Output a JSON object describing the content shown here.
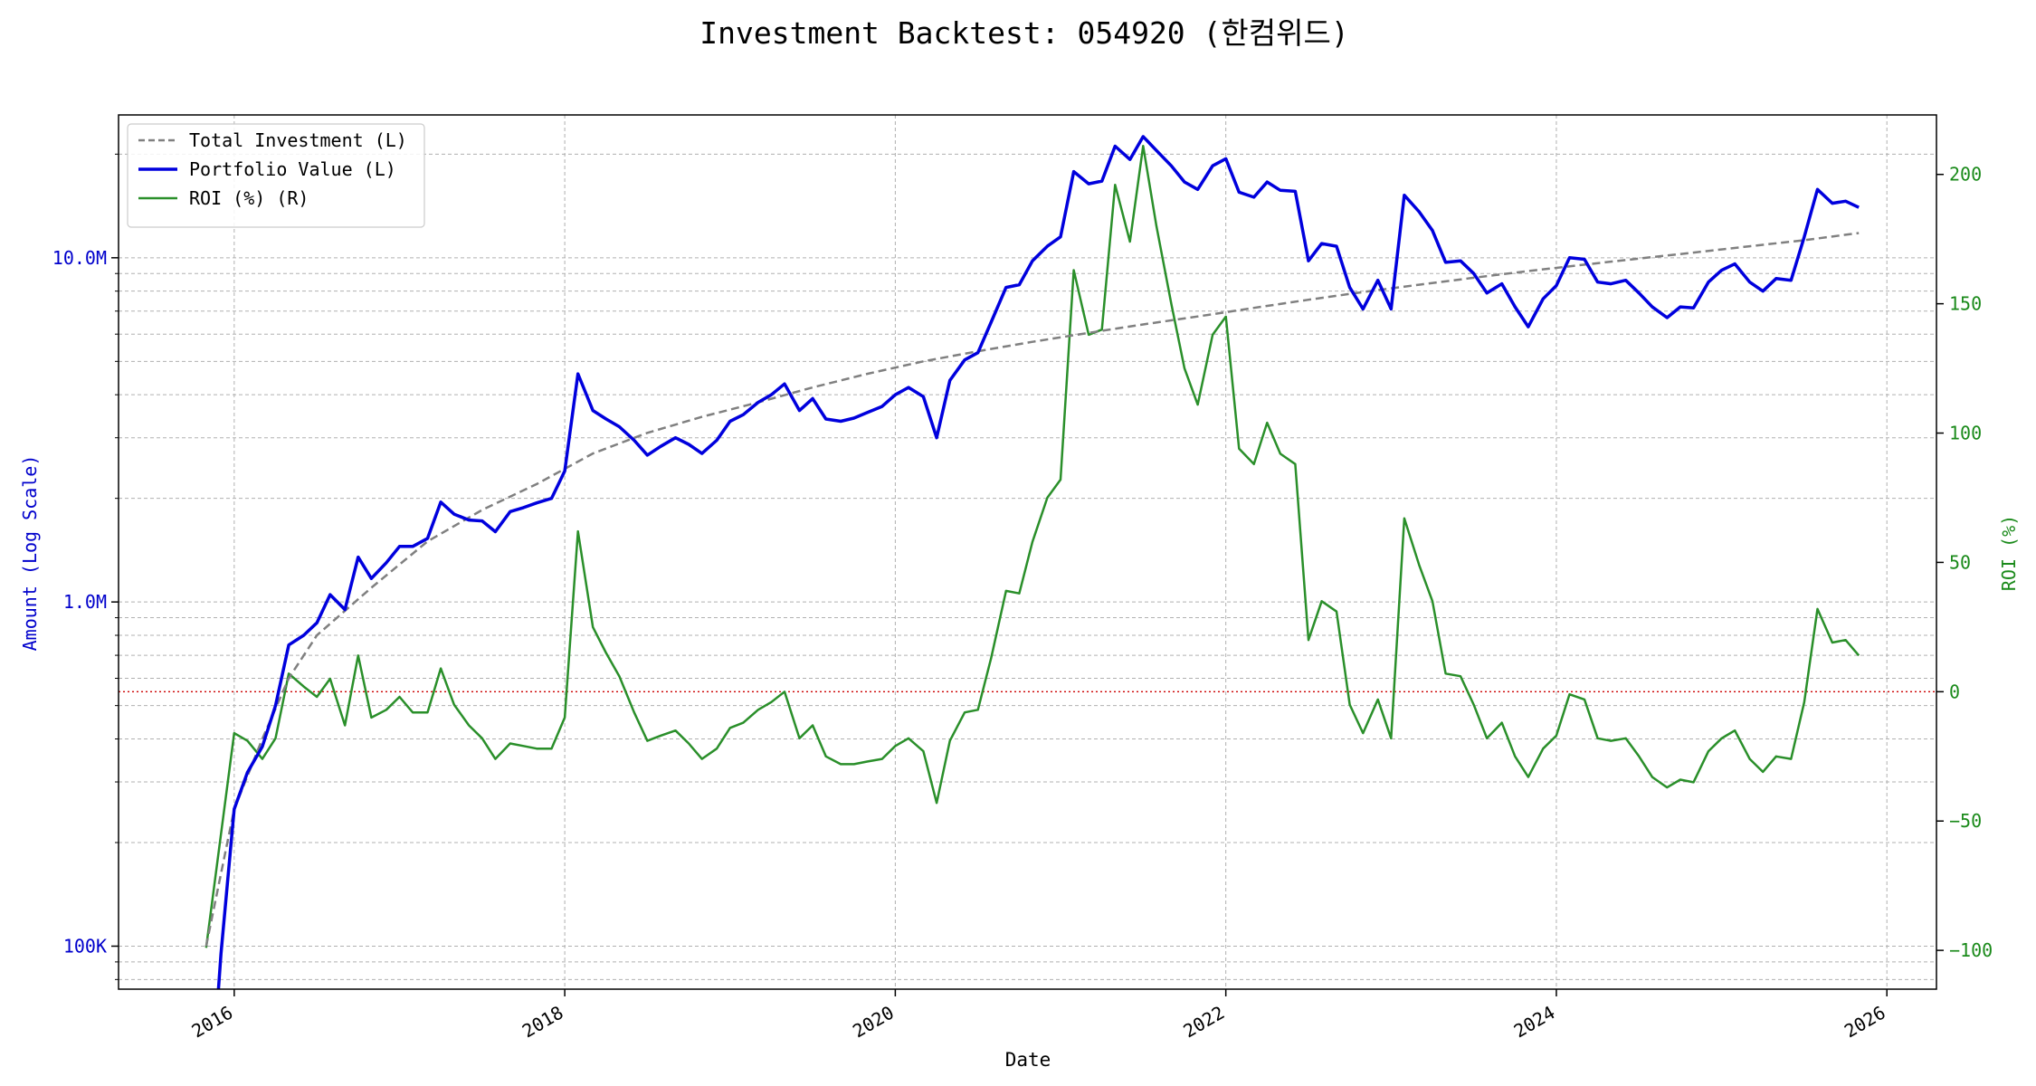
{
  "chart_data": {
    "type": "line",
    "title": "Investment Backtest: 054920 (한컴위드)",
    "xlabel": "Date",
    "ylabel_left": "Amount (Log Scale)",
    "ylabel_right": "ROI (%)",
    "y_left_scale": "log",
    "y_left_range": [
      75000,
      26000000
    ],
    "y_right_range": [
      -115,
      223
    ],
    "x_range": [
      2015.3,
      2026.3
    ],
    "x_ticks": [
      {
        "value": 2016,
        "label": "2016"
      },
      {
        "value": 2018,
        "label": "2018"
      },
      {
        "value": 2020,
        "label": "2020"
      },
      {
        "value": 2022,
        "label": "2022"
      },
      {
        "value": 2024,
        "label": "2024"
      },
      {
        "value": 2026,
        "label": "2026"
      }
    ],
    "y_left_ticks": [
      {
        "value": 100000,
        "label": "100K"
      },
      {
        "value": 1000000,
        "label": "1.0M"
      },
      {
        "value": 10000000,
        "label": "10.0M"
      }
    ],
    "y_right_ticks": [
      {
        "value": -100,
        "label": "−100"
      },
      {
        "value": -50,
        "label": "−50"
      },
      {
        "value": 0,
        "label": "0"
      },
      {
        "value": 50,
        "label": "50"
      },
      {
        "value": 100,
        "label": "100"
      },
      {
        "value": 150,
        "label": "150"
      },
      {
        "value": 200,
        "label": "200"
      }
    ],
    "grid": true,
    "reference_line": {
      "axis": "right",
      "value": 0,
      "color": "#cc0000",
      "style": "dotted"
    },
    "legend": {
      "position": "top-left",
      "entries": [
        {
          "label": "Total Investment (L)",
          "color": "#808080",
          "style": "dashed"
        },
        {
          "label": "Portfolio Value (L)",
          "color": "#0000dd",
          "style": "solid"
        },
        {
          "label": "ROI (%) (R)",
          "color": "#2a8f2a",
          "style": "solid"
        }
      ]
    },
    "series": [
      {
        "name": "Total Investment (L)",
        "axis": "left",
        "color": "#808080",
        "points": [
          [
            2015.83,
            100000
          ],
          [
            2016.0,
            250000
          ],
          [
            2016.17,
            400000
          ],
          [
            2016.33,
            600000
          ],
          [
            2016.5,
            800000
          ],
          [
            2016.83,
            1100000
          ],
          [
            2017.17,
            1500000
          ],
          [
            2017.5,
            1850000
          ],
          [
            2017.83,
            2200000
          ],
          [
            2018.17,
            2700000
          ],
          [
            2018.5,
            3100000
          ],
          [
            2018.83,
            3450000
          ],
          [
            2019.17,
            3800000
          ],
          [
            2019.5,
            4200000
          ],
          [
            2019.83,
            4600000
          ],
          [
            2020.17,
            5000000
          ],
          [
            2020.5,
            5350000
          ],
          [
            2020.83,
            5700000
          ],
          [
            2021.17,
            6050000
          ],
          [
            2021.5,
            6400000
          ],
          [
            2021.83,
            6750000
          ],
          [
            2022.17,
            7150000
          ],
          [
            2022.5,
            7550000
          ],
          [
            2022.83,
            7950000
          ],
          [
            2023.17,
            8350000
          ],
          [
            2023.5,
            8750000
          ],
          [
            2023.83,
            9150000
          ],
          [
            2024.17,
            9550000
          ],
          [
            2024.5,
            9950000
          ],
          [
            2024.83,
            10350000
          ],
          [
            2025.17,
            10800000
          ],
          [
            2025.5,
            11250000
          ],
          [
            2025.83,
            11800000
          ]
        ]
      },
      {
        "name": "Portfolio Value (L)",
        "axis": "left",
        "color": "#0000dd",
        "points": [
          [
            2015.9,
            70000
          ],
          [
            2015.92,
            95000
          ],
          [
            2016.0,
            250000
          ],
          [
            2016.08,
            320000
          ],
          [
            2016.17,
            380000
          ],
          [
            2016.25,
            500000
          ],
          [
            2016.33,
            750000
          ],
          [
            2016.42,
            800000
          ],
          [
            2016.5,
            870000
          ],
          [
            2016.58,
            1050000
          ],
          [
            2016.67,
            950000
          ],
          [
            2016.75,
            1350000
          ],
          [
            2016.83,
            1170000
          ],
          [
            2016.92,
            1300000
          ],
          [
            2017.0,
            1450000
          ],
          [
            2017.08,
            1450000
          ],
          [
            2017.17,
            1530000
          ],
          [
            2017.25,
            1950000
          ],
          [
            2017.33,
            1800000
          ],
          [
            2017.42,
            1730000
          ],
          [
            2017.5,
            1720000
          ],
          [
            2017.58,
            1600000
          ],
          [
            2017.67,
            1830000
          ],
          [
            2017.75,
            1880000
          ],
          [
            2017.83,
            1940000
          ],
          [
            2017.92,
            2000000
          ],
          [
            2018.0,
            2400000
          ],
          [
            2018.08,
            4600000
          ],
          [
            2018.17,
            3600000
          ],
          [
            2018.25,
            3400000
          ],
          [
            2018.33,
            3230000
          ],
          [
            2018.42,
            2950000
          ],
          [
            2018.5,
            2670000
          ],
          [
            2018.58,
            2830000
          ],
          [
            2018.67,
            3000000
          ],
          [
            2018.75,
            2870000
          ],
          [
            2018.83,
            2700000
          ],
          [
            2018.92,
            2950000
          ],
          [
            2019.0,
            3350000
          ],
          [
            2019.08,
            3500000
          ],
          [
            2019.17,
            3800000
          ],
          [
            2019.25,
            4000000
          ],
          [
            2019.33,
            4300000
          ],
          [
            2019.42,
            3600000
          ],
          [
            2019.5,
            3900000
          ],
          [
            2019.58,
            3400000
          ],
          [
            2019.67,
            3350000
          ],
          [
            2019.75,
            3420000
          ],
          [
            2019.83,
            3550000
          ],
          [
            2019.92,
            3700000
          ],
          [
            2020.0,
            4000000
          ],
          [
            2020.08,
            4200000
          ],
          [
            2020.17,
            3950000
          ],
          [
            2020.25,
            3000000
          ],
          [
            2020.33,
            4400000
          ],
          [
            2020.42,
            5050000
          ],
          [
            2020.5,
            5300000
          ],
          [
            2020.58,
            6500000
          ],
          [
            2020.67,
            8200000
          ],
          [
            2020.75,
            8350000
          ],
          [
            2020.83,
            9800000
          ],
          [
            2020.92,
            10800000
          ],
          [
            2021.0,
            11500000
          ],
          [
            2021.08,
            17800000
          ],
          [
            2021.17,
            16400000
          ],
          [
            2021.25,
            16700000
          ],
          [
            2021.33,
            21100000
          ],
          [
            2021.42,
            19300000
          ],
          [
            2021.5,
            22500000
          ],
          [
            2021.58,
            20500000
          ],
          [
            2021.67,
            18500000
          ],
          [
            2021.75,
            16600000
          ],
          [
            2021.83,
            15800000
          ],
          [
            2021.92,
            18500000
          ],
          [
            2022.0,
            19400000
          ],
          [
            2022.08,
            15500000
          ],
          [
            2022.17,
            15000000
          ],
          [
            2022.25,
            16600000
          ],
          [
            2022.33,
            15700000
          ],
          [
            2022.42,
            15600000
          ],
          [
            2022.5,
            9800000
          ],
          [
            2022.58,
            11000000
          ],
          [
            2022.67,
            10800000
          ],
          [
            2022.75,
            8200000
          ],
          [
            2022.83,
            7100000
          ],
          [
            2022.92,
            8600000
          ],
          [
            2023.0,
            7100000
          ],
          [
            2023.08,
            15200000
          ],
          [
            2023.17,
            13600000
          ],
          [
            2023.25,
            12000000
          ],
          [
            2023.33,
            9700000
          ],
          [
            2023.42,
            9800000
          ],
          [
            2023.5,
            9000000
          ],
          [
            2023.58,
            7900000
          ],
          [
            2023.67,
            8400000
          ],
          [
            2023.75,
            7200000
          ],
          [
            2023.83,
            6300000
          ],
          [
            2023.92,
            7600000
          ],
          [
            2024.0,
            8300000
          ],
          [
            2024.08,
            10000000
          ],
          [
            2024.17,
            9900000
          ],
          [
            2024.25,
            8500000
          ],
          [
            2024.33,
            8400000
          ],
          [
            2024.42,
            8600000
          ],
          [
            2024.5,
            7900000
          ],
          [
            2024.58,
            7200000
          ],
          [
            2024.67,
            6700000
          ],
          [
            2024.75,
            7200000
          ],
          [
            2024.83,
            7150000
          ],
          [
            2024.92,
            8500000
          ],
          [
            2025.0,
            9200000
          ],
          [
            2025.08,
            9600000
          ],
          [
            2025.17,
            8500000
          ],
          [
            2025.25,
            8000000
          ],
          [
            2025.33,
            8700000
          ],
          [
            2025.42,
            8600000
          ],
          [
            2025.5,
            11500000
          ],
          [
            2025.58,
            15800000
          ],
          [
            2025.67,
            14400000
          ],
          [
            2025.75,
            14600000
          ],
          [
            2025.83,
            14000000
          ]
        ]
      },
      {
        "name": "ROI (%) (R)",
        "axis": "right",
        "color": "#2a8f2a",
        "points": [
          [
            2015.83,
            -99
          ],
          [
            2016.0,
            -16
          ],
          [
            2016.08,
            -19
          ],
          [
            2016.17,
            -26
          ],
          [
            2016.25,
            -18
          ],
          [
            2016.33,
            7
          ],
          [
            2016.42,
            2
          ],
          [
            2016.5,
            -2
          ],
          [
            2016.58,
            5
          ],
          [
            2016.67,
            -13
          ],
          [
            2016.75,
            14
          ],
          [
            2016.83,
            -10
          ],
          [
            2016.92,
            -7
          ],
          [
            2017.0,
            -2
          ],
          [
            2017.08,
            -8
          ],
          [
            2017.17,
            -8
          ],
          [
            2017.25,
            9
          ],
          [
            2017.33,
            -5
          ],
          [
            2017.42,
            -13
          ],
          [
            2017.5,
            -18
          ],
          [
            2017.58,
            -26
          ],
          [
            2017.67,
            -20
          ],
          [
            2017.75,
            -21
          ],
          [
            2017.83,
            -22
          ],
          [
            2017.92,
            -22
          ],
          [
            2018.0,
            -10
          ],
          [
            2018.08,
            62
          ],
          [
            2018.17,
            25
          ],
          [
            2018.25,
            15
          ],
          [
            2018.33,
            6
          ],
          [
            2018.42,
            -8
          ],
          [
            2018.5,
            -19
          ],
          [
            2018.58,
            -17
          ],
          [
            2018.67,
            -15
          ],
          [
            2018.75,
            -20
          ],
          [
            2018.83,
            -26
          ],
          [
            2018.92,
            -22
          ],
          [
            2019.0,
            -14
          ],
          [
            2019.08,
            -12
          ],
          [
            2019.17,
            -7
          ],
          [
            2019.25,
            -4
          ],
          [
            2019.33,
            0
          ],
          [
            2019.42,
            -18
          ],
          [
            2019.5,
            -13
          ],
          [
            2019.58,
            -25
          ],
          [
            2019.67,
            -28
          ],
          [
            2019.75,
            -28
          ],
          [
            2019.83,
            -27
          ],
          [
            2019.92,
            -26
          ],
          [
            2020.0,
            -21
          ],
          [
            2020.08,
            -18
          ],
          [
            2020.17,
            -23
          ],
          [
            2020.25,
            -43
          ],
          [
            2020.33,
            -19
          ],
          [
            2020.42,
            -8
          ],
          [
            2020.5,
            -7
          ],
          [
            2020.58,
            13
          ],
          [
            2020.67,
            39
          ],
          [
            2020.75,
            38
          ],
          [
            2020.83,
            58
          ],
          [
            2020.92,
            75
          ],
          [
            2021.0,
            82
          ],
          [
            2021.08,
            163
          ],
          [
            2021.17,
            138
          ],
          [
            2021.25,
            140
          ],
          [
            2021.33,
            196
          ],
          [
            2021.42,
            174
          ],
          [
            2021.5,
            211
          ],
          [
            2021.58,
            180
          ],
          [
            2021.67,
            150
          ],
          [
            2021.75,
            125
          ],
          [
            2021.83,
            111
          ],
          [
            2021.92,
            138
          ],
          [
            2022.0,
            145
          ],
          [
            2022.08,
            94
          ],
          [
            2022.17,
            88
          ],
          [
            2022.25,
            104
          ],
          [
            2022.33,
            92
          ],
          [
            2022.42,
            88
          ],
          [
            2022.5,
            20
          ],
          [
            2022.58,
            35
          ],
          [
            2022.67,
            31
          ],
          [
            2022.75,
            -5
          ],
          [
            2022.83,
            -16
          ],
          [
            2022.92,
            -3
          ],
          [
            2023.0,
            -18
          ],
          [
            2023.08,
            67
          ],
          [
            2023.17,
            49
          ],
          [
            2023.25,
            35
          ],
          [
            2023.33,
            7
          ],
          [
            2023.42,
            6
          ],
          [
            2023.5,
            -5
          ],
          [
            2023.58,
            -18
          ],
          [
            2023.67,
            -12
          ],
          [
            2023.75,
            -25
          ],
          [
            2023.83,
            -33
          ],
          [
            2023.92,
            -22
          ],
          [
            2024.0,
            -17
          ],
          [
            2024.08,
            -1
          ],
          [
            2024.17,
            -3
          ],
          [
            2024.25,
            -18
          ],
          [
            2024.33,
            -19
          ],
          [
            2024.42,
            -18
          ],
          [
            2024.5,
            -25
          ],
          [
            2024.58,
            -33
          ],
          [
            2024.67,
            -37
          ],
          [
            2024.75,
            -34
          ],
          [
            2024.83,
            -35
          ],
          [
            2024.92,
            -23
          ],
          [
            2025.0,
            -18
          ],
          [
            2025.08,
            -15
          ],
          [
            2025.17,
            -26
          ],
          [
            2025.25,
            -31
          ],
          [
            2025.33,
            -25
          ],
          [
            2025.42,
            -26
          ],
          [
            2025.5,
            -4
          ],
          [
            2025.58,
            32
          ],
          [
            2025.67,
            19
          ],
          [
            2025.75,
            20
          ],
          [
            2025.83,
            14
          ]
        ]
      }
    ]
  }
}
